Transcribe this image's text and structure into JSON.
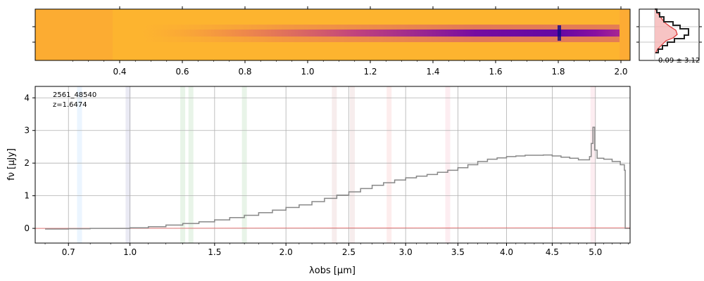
{
  "figure": {
    "object_id": "2561_48540",
    "redshift_label": "z=1.6474",
    "stats_label": "0.09 ± 3.12"
  },
  "chart_data": [
    {
      "type": "heatmap",
      "name": "2D spectrum",
      "x_ticks": [
        0.4,
        0.6,
        0.8,
        1.0,
        1.2,
        1.4,
        1.6,
        1.8,
        2.0
      ],
      "x_tick_labels": [
        "0.4",
        "0.6",
        "0.8",
        "1.0",
        "1.2",
        "1.4",
        "1.6",
        "1.8",
        "2.0"
      ],
      "colormap": "plasma",
      "trace_profile": [
        [
          0.25,
          0.0
        ],
        [
          0.5,
          0.25
        ],
        [
          0.8,
          0.4
        ],
        [
          1.0,
          0.5
        ],
        [
          1.2,
          0.6
        ],
        [
          1.4,
          0.7
        ],
        [
          1.6,
          0.85
        ],
        [
          1.7,
          0.8
        ],
        [
          1.8,
          0.75
        ],
        [
          1.87,
          0.9
        ],
        [
          1.95,
          0.75
        ]
      ]
    },
    {
      "type": "line",
      "name": "spatial profile",
      "xlim": [
        0,
        1
      ],
      "ylim": [
        -1,
        1
      ],
      "annotation": "0.09 ± 3.12",
      "colors": {
        "data": "#222222",
        "model": "#dd3333",
        "fill": "#f5b5b5"
      }
    },
    {
      "type": "line",
      "name": "1D spectrum",
      "xlabel": "λobs [μm]",
      "ylabel": "fν [μJy]",
      "xscale": "sqrt",
      "xlim": [
        0.56,
        5.42
      ],
      "ylim": [
        -0.45,
        4.35
      ],
      "x_ticks": [
        0.7,
        1.0,
        1.5,
        2.0,
        2.5,
        3.0,
        3.5,
        4.0,
        4.5,
        5.0
      ],
      "x_tick_labels": [
        "0.7",
        "1.0",
        "1.5",
        "2.0",
        "2.5",
        "3.0",
        "3.5",
        "4.0",
        "4.5",
        "5.0"
      ],
      "y_ticks": [
        0,
        1,
        2,
        3,
        4
      ],
      "y_tick_labels": [
        "0",
        "1",
        "2",
        "3",
        "4"
      ],
      "grid": true,
      "line_color": "#888888",
      "series": [
        {
          "x": [
            0.6,
            0.7,
            0.8,
            0.9,
            1.0,
            1.1,
            1.2,
            1.3,
            1.4,
            1.5,
            1.6,
            1.7,
            1.8,
            1.9,
            2.0,
            2.1,
            2.2,
            2.3,
            2.4,
            2.5,
            2.6,
            2.7,
            2.8,
            2.9,
            3.0,
            3.1,
            3.2,
            3.3,
            3.4,
            3.5,
            3.6,
            3.7,
            3.8,
            3.9,
            4.0,
            4.1,
            4.2,
            4.3,
            4.4,
            4.5,
            4.6,
            4.7,
            4.8,
            4.9,
            4.93,
            4.95,
            4.97,
            4.99,
            5.02,
            5.1,
            5.2,
            5.3,
            5.35,
            5.36,
            5.42
          ],
          "values": [
            -0.02,
            -0.01,
            0.0,
            0.0,
            0.02,
            0.05,
            0.1,
            0.15,
            0.2,
            0.26,
            0.33,
            0.4,
            0.48,
            0.56,
            0.64,
            0.72,
            0.82,
            0.92,
            1.02,
            1.12,
            1.22,
            1.32,
            1.4,
            1.48,
            1.55,
            1.6,
            1.65,
            1.72,
            1.78,
            1.86,
            1.95,
            2.05,
            2.12,
            2.16,
            2.2,
            2.22,
            2.24,
            2.24,
            2.25,
            2.22,
            2.18,
            2.15,
            2.1,
            2.1,
            2.2,
            2.6,
            3.1,
            2.4,
            2.15,
            2.12,
            2.05,
            1.95,
            1.78,
            0.0,
            0.0
          ]
        },
        {
          "x": [
            0.56,
            4.1,
            5.42
          ],
          "values": [
            0.0,
            0.02,
            0.02
          ]
        }
      ],
      "line_markers": [
        {
          "x": 0.75,
          "color": "#1e90ff"
        },
        {
          "x": 0.99,
          "color": "#1a1a8a"
        },
        {
          "x": 1.3,
          "color": "#008800"
        },
        {
          "x": 1.35,
          "color": "#008800"
        },
        {
          "x": 1.7,
          "color": "#008800"
        },
        {
          "x": 2.38,
          "color": "#aa3333"
        },
        {
          "x": 2.53,
          "color": "#aa3333"
        },
        {
          "x": 2.85,
          "color": "#ee3333"
        },
        {
          "x": 3.4,
          "color": "#ee3366"
        },
        {
          "x": 4.97,
          "color": "#ee3366"
        }
      ],
      "annotation": [
        "2561_48540",
        "z=1.6474"
      ]
    }
  ]
}
